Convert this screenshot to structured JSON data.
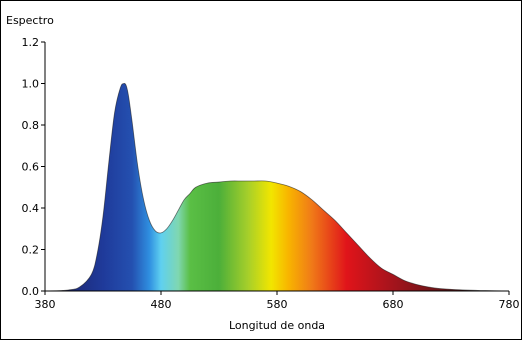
{
  "chart_data": {
    "type": "area",
    "title": "",
    "ylabel": "Espectro",
    "xlabel": "Longitud de onda",
    "xlim": [
      380,
      780
    ],
    "ylim": [
      0,
      1.2
    ],
    "x_ticks": [
      380,
      480,
      580,
      680,
      780
    ],
    "x_tick_labels": [
      "380",
      "480",
      "580",
      "680",
      "780"
    ],
    "y_ticks": [
      0.0,
      0.2,
      0.4,
      0.6,
      0.8,
      1.0,
      1.2
    ],
    "y_tick_labels": [
      "0.0",
      "0.2",
      "0.4",
      "0.6",
      "0.8",
      "1.0",
      "1.2"
    ],
    "grid": false,
    "fill": "visible-spectrum gradient",
    "series": [
      {
        "x": [
          380,
          400,
          410,
          420,
          425,
          430,
          435,
          440,
          445,
          448,
          450,
          452,
          455,
          460,
          465,
          470,
          475,
          480,
          485,
          490,
          495,
          500,
          505,
          510,
          520,
          530,
          540,
          550,
          560,
          570,
          580,
          590,
          600,
          610,
          620,
          630,
          640,
          650,
          660,
          670,
          680,
          690,
          700,
          710,
          720,
          740,
          760,
          780
        ],
        "values": [
          0.0,
          0.005,
          0.02,
          0.08,
          0.18,
          0.36,
          0.62,
          0.86,
          0.98,
          1.0,
          0.99,
          0.94,
          0.82,
          0.6,
          0.44,
          0.34,
          0.29,
          0.28,
          0.3,
          0.34,
          0.39,
          0.44,
          0.47,
          0.5,
          0.52,
          0.525,
          0.53,
          0.53,
          0.53,
          0.53,
          0.52,
          0.505,
          0.48,
          0.44,
          0.39,
          0.34,
          0.28,
          0.22,
          0.16,
          0.11,
          0.08,
          0.05,
          0.032,
          0.02,
          0.012,
          0.005,
          0.002,
          0.0
        ]
      }
    ]
  },
  "colors": {
    "axis": "#000000",
    "outline": "#1a1a1a",
    "spectrum_stops": [
      {
        "nm": 380,
        "color": "#1b1c5c"
      },
      {
        "nm": 430,
        "color": "#1f3a9a"
      },
      {
        "nm": 455,
        "color": "#2450b0"
      },
      {
        "nm": 470,
        "color": "#2f8fe0"
      },
      {
        "nm": 480,
        "color": "#5fd0f0"
      },
      {
        "nm": 495,
        "color": "#7fd7b0"
      },
      {
        "nm": 505,
        "color": "#5abf45"
      },
      {
        "nm": 530,
        "color": "#4caf3a"
      },
      {
        "nm": 555,
        "color": "#a6cf2a"
      },
      {
        "nm": 575,
        "color": "#f2e600"
      },
      {
        "nm": 590,
        "color": "#f8b400"
      },
      {
        "nm": 610,
        "color": "#f07a18"
      },
      {
        "nm": 640,
        "color": "#e0141a"
      },
      {
        "nm": 680,
        "color": "#a4141c"
      },
      {
        "nm": 730,
        "color": "#5a1416"
      },
      {
        "nm": 780,
        "color": "#3a1010"
      }
    ]
  }
}
